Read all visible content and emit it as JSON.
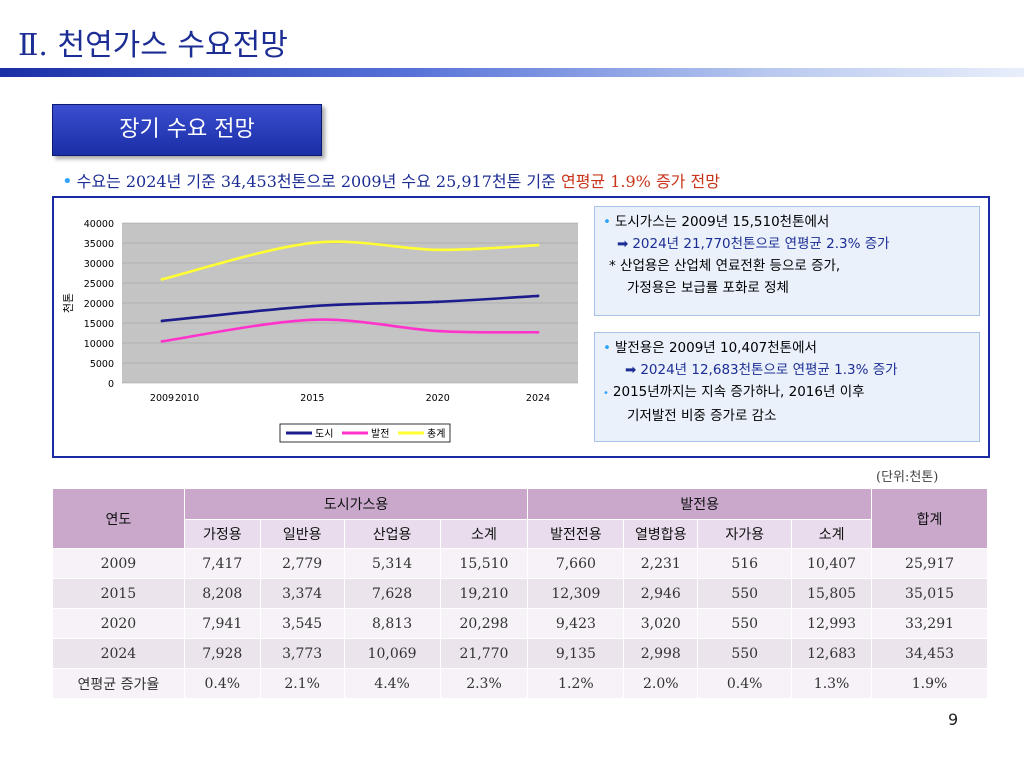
{
  "page": {
    "title": "Ⅱ. 천연가스 수요전망",
    "section_label": "장기 수요 전망",
    "summary": {
      "bullet": "•",
      "text_main": "수요는 2024년 기준  34,453천톤으로 2009년 수요 25,917천톤  기준 ",
      "text_highlight": "연평균 1.9%  증가 전망"
    },
    "unit_note": "(단위:천톤)",
    "page_number": "9"
  },
  "notes": {
    "city_gas": {
      "line1": "도시가스는 2009년 15,510천톤에서",
      "line2": "2024년 21,770천톤으로 연평균 2.3% 증가",
      "line3": "*  산업용은 산업체 연료전환 등으로 증가,",
      "line4": "가정용은 보급률 포화로 정체"
    },
    "power": {
      "line1": "발전용은 2009년 10,407천톤에서",
      "line2": "2024년 12,683천톤으로 연평균 1.3% 증가",
      "line3": "2015년까지는 지속 증가하나, 2016년 이후",
      "line4": "기저발전 비중 증가로 감소"
    }
  },
  "chart_data": {
    "type": "line",
    "x": [
      2009,
      2015,
      2020,
      2024
    ],
    "x_ticks": [
      "2009",
      "2010",
      "2015",
      "2020",
      "2024"
    ],
    "y_ticks": [
      "40000",
      "35000",
      "30000",
      "25000",
      "20000",
      "15000",
      "10000",
      "5000",
      "0"
    ],
    "ylabel": "천톤",
    "ylim": [
      0,
      40000
    ],
    "grid": true,
    "legend_position": "bottom",
    "series": [
      {
        "name": "도시",
        "values": [
          15510,
          19210,
          20298,
          21770
        ],
        "color": "#1c1c8c"
      },
      {
        "name": "발전",
        "values": [
          10407,
          15805,
          12993,
          12683
        ],
        "color": "#ff33cc"
      },
      {
        "name": "총계",
        "values": [
          25917,
          35015,
          33291,
          34453
        ],
        "color": "#ffff33"
      }
    ]
  },
  "table": {
    "header": {
      "year": "연도",
      "city_group": "도시가스용",
      "power_group": "발전용",
      "total": "합계",
      "city_sub": [
        "가정용",
        "일반용",
        "산업용",
        "소계"
      ],
      "power_sub": [
        "발전전용",
        "열병합용",
        "자가용",
        "소계"
      ]
    },
    "rows": [
      [
        "2009",
        "7,417",
        "2,779",
        "5,314",
        "15,510",
        "7,660",
        "2,231",
        "516",
        "10,407",
        "25,917"
      ],
      [
        "2015",
        "8,208",
        "3,374",
        "7,628",
        "19,210",
        "12,309",
        "2,946",
        "550",
        "15,805",
        "35,015"
      ],
      [
        "2020",
        "7,941",
        "3,545",
        "8,813",
        "20,298",
        "9,423",
        "3,020",
        "550",
        "12,993",
        "33,291"
      ],
      [
        "2024",
        "7,928",
        "3,773",
        "10,069",
        "21,770",
        "9,135",
        "2,998",
        "550",
        "12,683",
        "34,453"
      ],
      [
        "연평균 증가율",
        "0.4%",
        "2.1%",
        "4.4%",
        "2.3%",
        "1.2%",
        "2.0%",
        "0.4%",
        "1.3%",
        "1.9%"
      ]
    ]
  }
}
